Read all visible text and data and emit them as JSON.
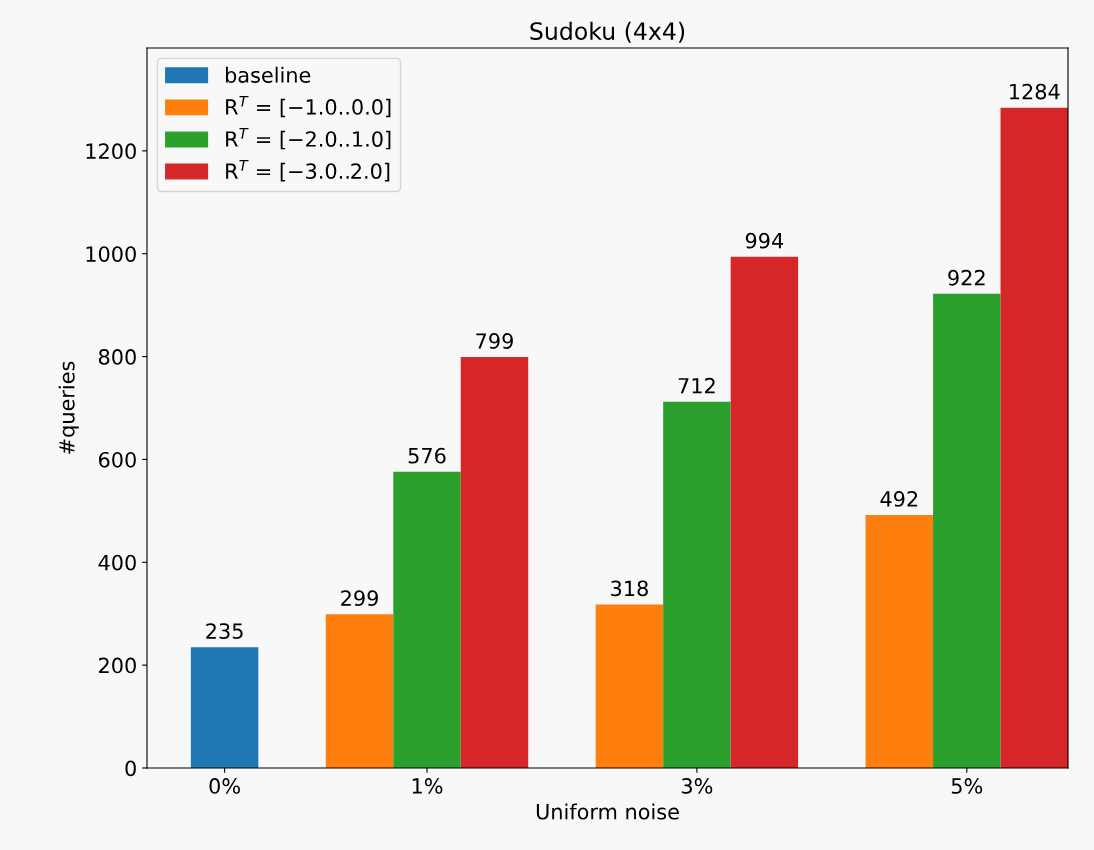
{
  "chart_data": {
    "type": "bar",
    "title": "Sudoku (4x4)",
    "xlabel": "Uniform noise",
    "ylabel": "#queries",
    "categories": [
      "0%",
      "1%",
      "3%",
      "5%"
    ],
    "series": [
      {
        "name": "baseline",
        "color": "#1f77b4",
        "values": [
          235,
          null,
          null,
          null
        ]
      },
      {
        "name": "R$^{T}$ = [−1.0..0.0]",
        "color": "#ff7f0e",
        "values": [
          null,
          299,
          318,
          492
        ]
      },
      {
        "name": "R$^{T}$ = [−2.0..1.0]",
        "color": "#2ca02c",
        "values": [
          null,
          576,
          712,
          922
        ]
      },
      {
        "name": "R$^{T}$ = [−3.0..2.0]",
        "color": "#d62728",
        "values": [
          null,
          799,
          994,
          1284
        ]
      }
    ],
    "ylim": [
      0,
      1400
    ],
    "yticks": [
      0,
      200,
      400,
      600,
      800,
      1000,
      1200
    ],
    "data_labels": true,
    "legend": "top left",
    "grid": false
  }
}
